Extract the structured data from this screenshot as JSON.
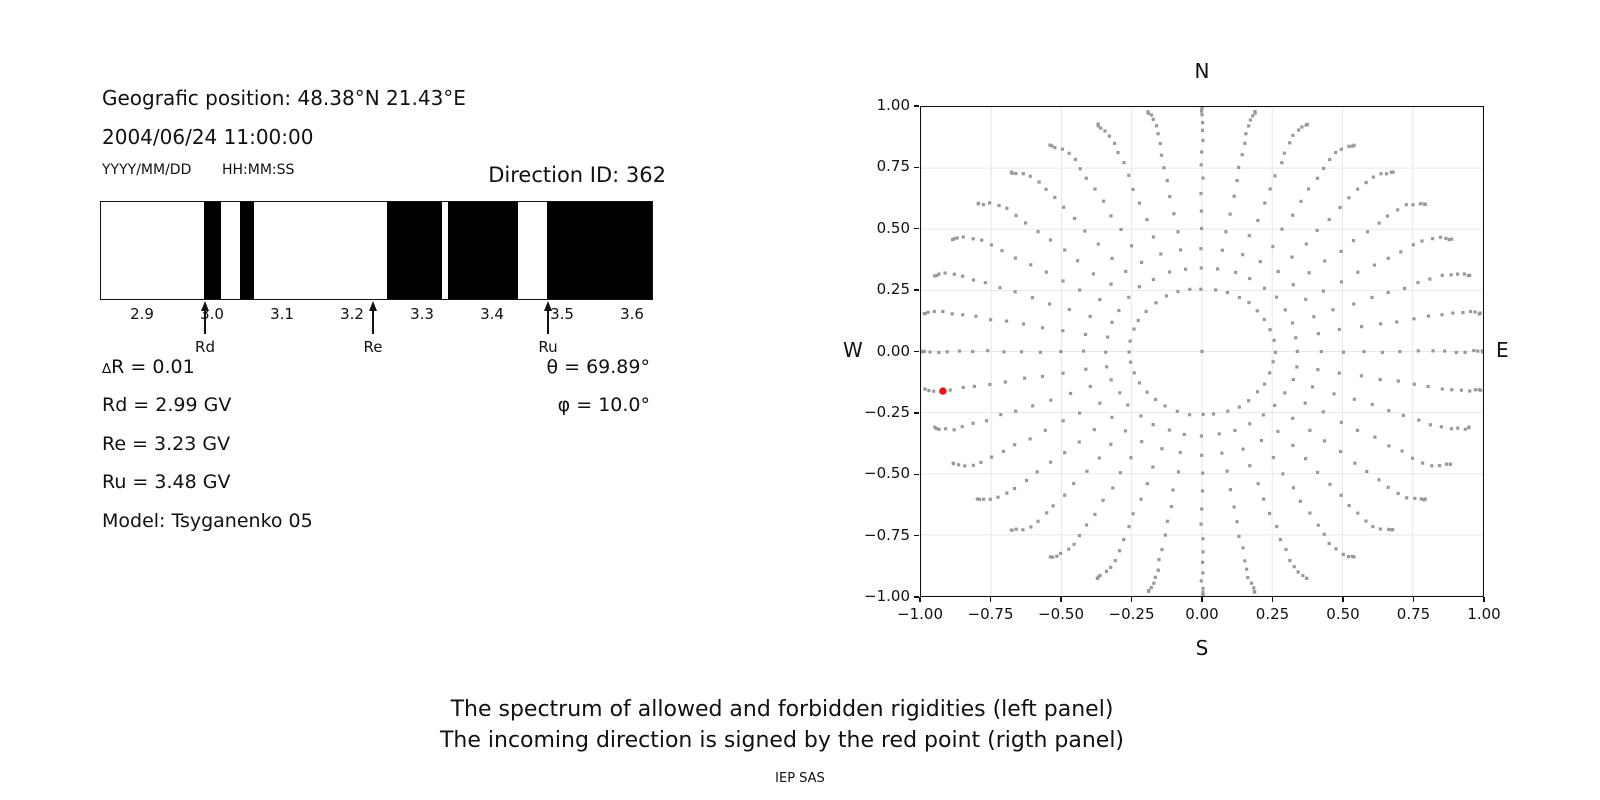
{
  "info": {
    "position_label": "Geografic position: 48.38°N 21.43°E",
    "datetime": "2004/06/24 11:00:00",
    "date_format": "YYYY/MM/DD",
    "time_format": "HH:MM:SS",
    "direction_id": "Direction ID: 362",
    "delta_symbol": "∆",
    "delta_rest": "R = 0.01",
    "rd": "Rd = 2.99 GV",
    "re": "Re = 3.23 GV",
    "ru": "Ru = 3.48 GV",
    "model": "Model: Tsyganenko 05",
    "theta": "θ = 69.89°",
    "phi": "φ = 10.0°"
  },
  "captions": {
    "line1": "The spectrum of allowed and forbidden rigidities (left panel)",
    "line2": "The incoming direction is signed by the red point (rigth panel)",
    "credit": "IEP SAS"
  },
  "chart_data": [
    {
      "type": "heatmap",
      "name": "rigidity-spectrum-barcode",
      "description": "1D spectrum of allowed (white) and forbidden (black) rigidities in GV",
      "xlim": [
        2.84,
        3.63
      ],
      "xticks": [
        2.9,
        3.0,
        3.1,
        3.2,
        3.3,
        3.4,
        3.5,
        3.6
      ],
      "xtick_labels": [
        "2.9",
        "3.0",
        "3.1",
        "3.2",
        "3.3",
        "3.4",
        "3.5",
        "3.6"
      ],
      "forbidden_bands_gv": [
        [
          2.987,
          3.012
        ],
        [
          3.04,
          3.06
        ],
        [
          3.25,
          3.329
        ],
        [
          3.338,
          3.438
        ],
        [
          3.479,
          3.63
        ]
      ],
      "markers": [
        {
          "label": "Rd",
          "value_gv": 2.99
        },
        {
          "label": "Re",
          "value_gv": 3.23
        },
        {
          "label": "Ru",
          "value_gv": 3.48
        }
      ],
      "colors": {
        "forbidden": "#000000",
        "allowed": "#ffffff",
        "frame": "#111111"
      }
    },
    {
      "type": "scatter",
      "name": "incoming-direction-skymap",
      "axis_labels": {
        "top": "N",
        "bottom": "S",
        "left": "W",
        "right": "E"
      },
      "xlim": [
        -1.0,
        1.0
      ],
      "ylim": [
        -1.0,
        1.0
      ],
      "xticks": [
        -1.0,
        -0.75,
        -0.5,
        -0.25,
        0.0,
        0.25,
        0.5,
        0.75,
        1.0
      ],
      "yticks": [
        1.0,
        0.75,
        0.5,
        0.25,
        0.0,
        -0.25,
        -0.5,
        -0.75,
        -1.0
      ],
      "xtick_labels": [
        "−1.00",
        "−0.75",
        "−0.50",
        "−0.25",
        "0.00",
        "0.25",
        "0.50",
        "0.75",
        "1.00"
      ],
      "ytick_labels": [
        "1.00",
        "0.75",
        "0.50",
        "0.25",
        "0.00",
        "−0.25",
        "−0.50",
        "−0.75",
        "−1.00"
      ],
      "grid": true,
      "direction_grid": {
        "comment": "gray points: direction grid, x=r*sin(az), y=r*cos(az), r=sin(zenith)",
        "azimuth_deg_start": 0,
        "azimuth_deg_step": 10,
        "azimuth_count": 36,
        "zenith_deg": [
          15,
          20,
          25,
          30,
          35,
          40,
          45,
          50,
          55,
          60,
          65,
          70,
          75,
          80,
          85,
          90
        ],
        "radii": [
          0.2588,
          0.342,
          0.4226,
          0.5,
          0.5736,
          0.6428,
          0.7071,
          0.766,
          0.8192,
          0.866,
          0.9063,
          0.9397,
          0.9659,
          0.9848,
          0.9962,
          1.0
        ],
        "center_point": [
          0,
          0
        ]
      },
      "red_point": {
        "x": -0.922,
        "y": -0.162
      },
      "colors": {
        "dots": "#999999",
        "red_point": "#ee1111",
        "grid": "#e8e8e8",
        "frame": "#111111"
      }
    }
  ]
}
